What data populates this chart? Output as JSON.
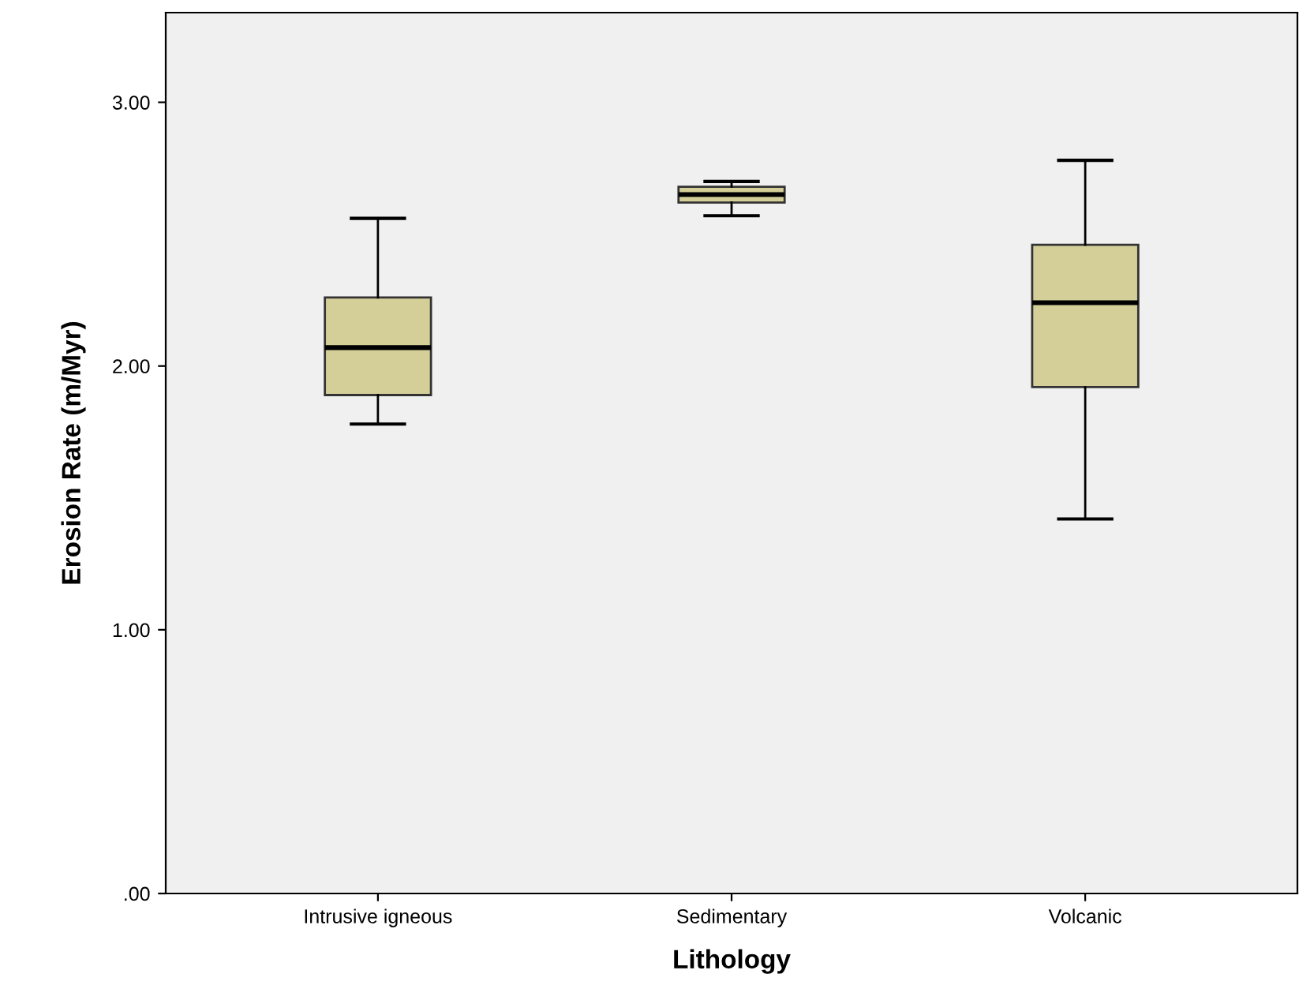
{
  "chart_data": {
    "type": "box",
    "xlabel": "Lithology",
    "ylabel": "Erosion Rate (m/Myr)",
    "categories": [
      "Intrusive igneous",
      "Sedimentary",
      "Volcanic"
    ],
    "boxes": [
      {
        "low": 1.78,
        "q1": 1.89,
        "median": 2.07,
        "q3": 2.26,
        "high": 2.56
      },
      {
        "low": 2.57,
        "q1": 2.62,
        "median": 2.65,
        "q3": 2.68,
        "high": 2.7
      },
      {
        "low": 1.42,
        "q1": 1.92,
        "median": 2.24,
        "q3": 2.46,
        "high": 2.78
      }
    ],
    "color": "#d4cf98",
    "ylim": [
      0,
      3.34
    ],
    "yticks": [
      {
        "value": 0,
        "label": ".00"
      },
      {
        "value": 1,
        "label": "1.00"
      },
      {
        "value": 2,
        "label": "2.00"
      },
      {
        "value": 3,
        "label": "3.00"
      }
    ],
    "grid": false
  }
}
